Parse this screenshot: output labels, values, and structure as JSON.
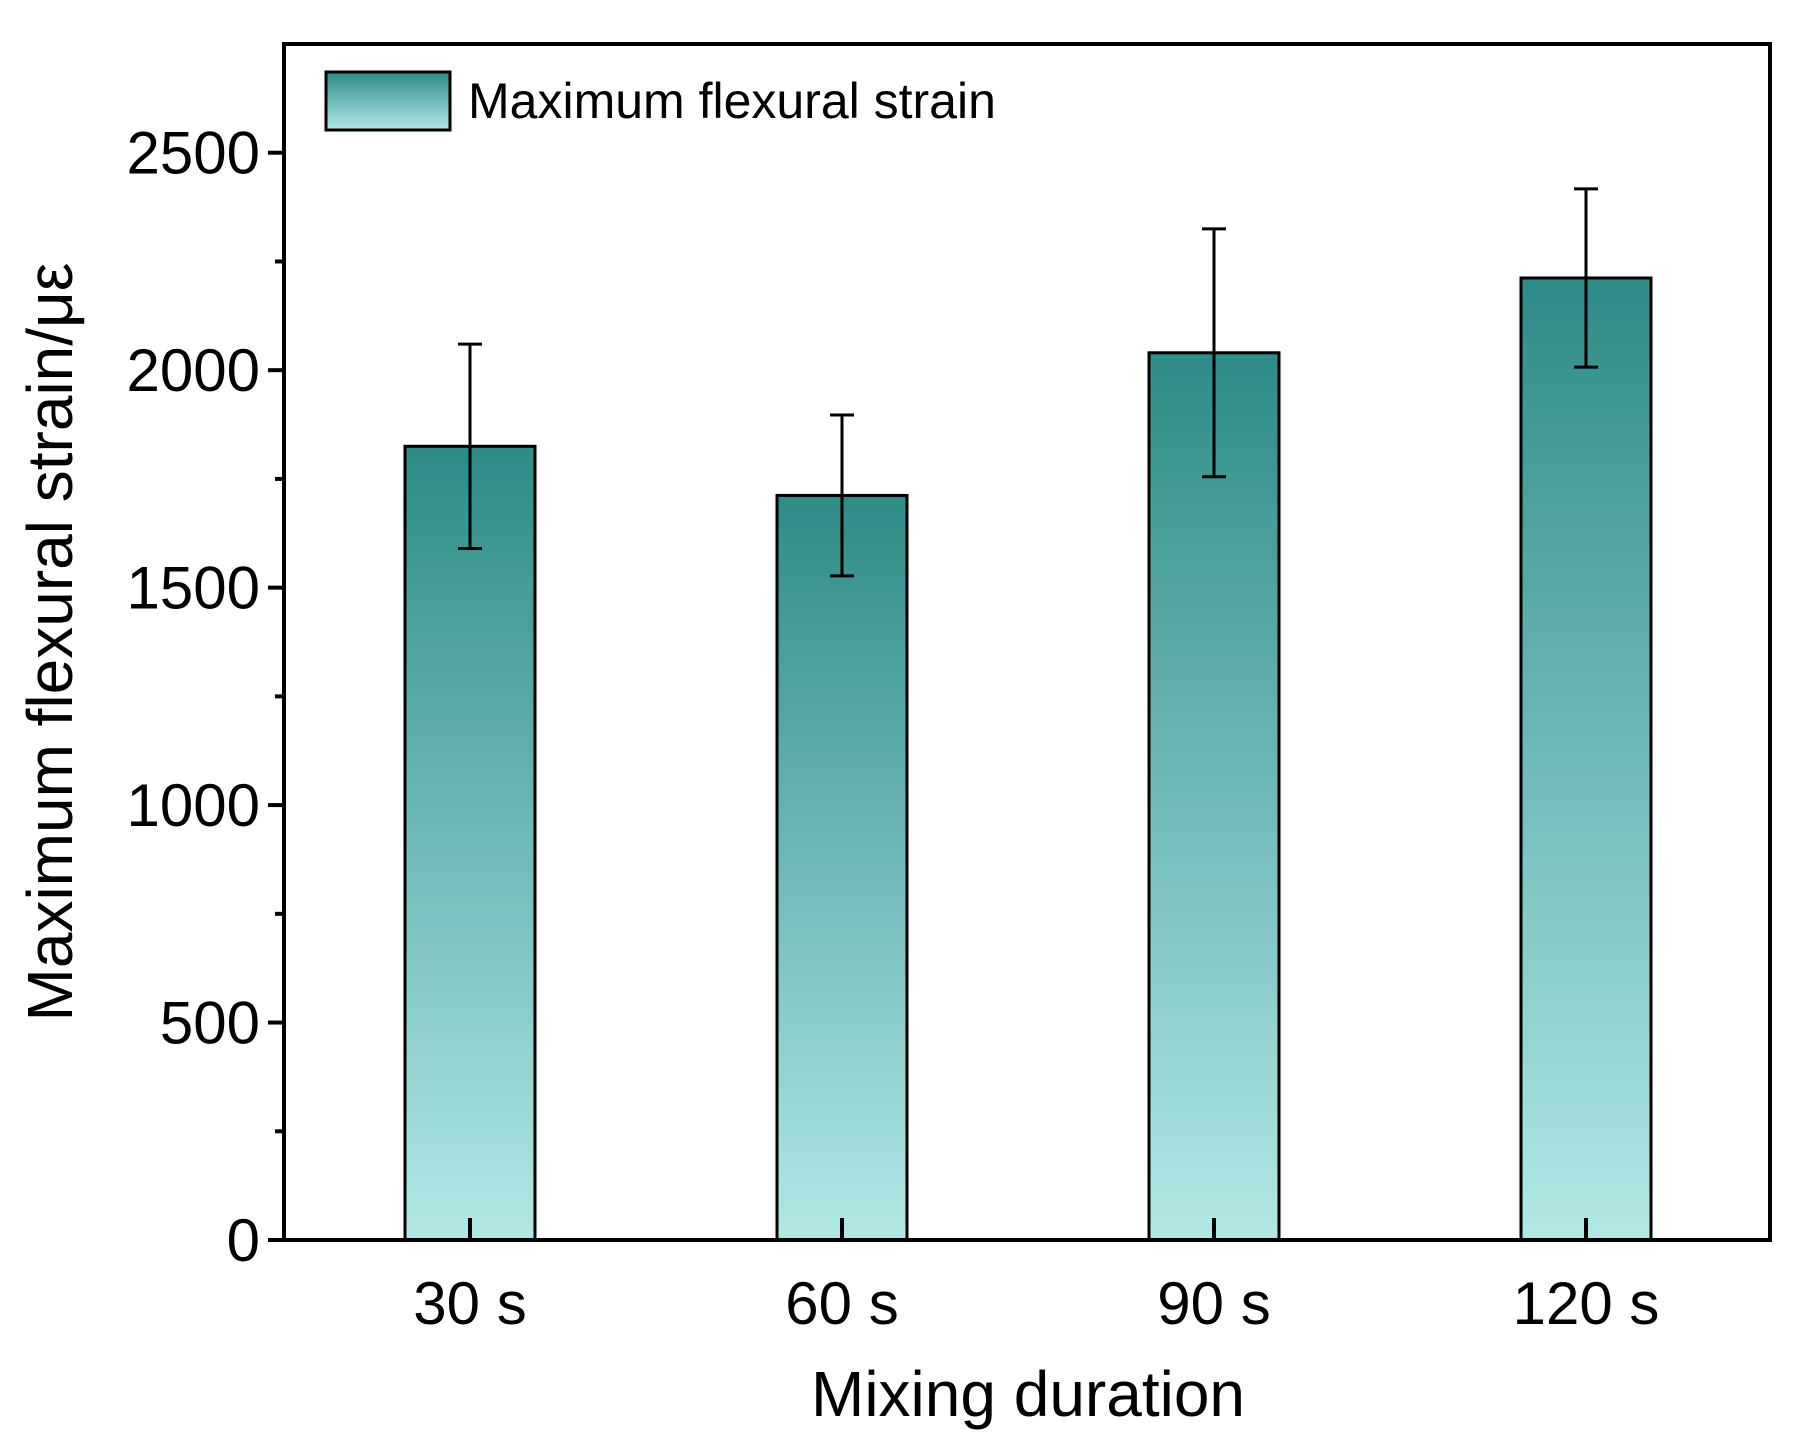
{
  "chart_data": {
    "type": "bar",
    "title": "",
    "xlabel": "Mixing duration",
    "ylabel": "Maximum flexural strain/με",
    "categories": [
      "30 s",
      "60 s",
      "90 s",
      "120 s"
    ],
    "series": [
      {
        "name": "Maximum flexural strain",
        "values": [
          1825,
          1712,
          2040,
          2212
        ],
        "errors": [
          235,
          185,
          285,
          205
        ]
      }
    ],
    "ylim": [
      0,
      2750
    ],
    "yticks": [
      0,
      500,
      1000,
      1500,
      2000,
      2500
    ],
    "yticks_minor": [
      250,
      750,
      1250,
      1750,
      2250
    ],
    "grid": false,
    "legend_position": "top-left",
    "colors": {
      "bar_top": "#2e8b87",
      "bar_bottom": "#b2e8e6",
      "bar_edge": "#000000",
      "axis": "#000000",
      "error_bar": "#000000"
    }
  }
}
